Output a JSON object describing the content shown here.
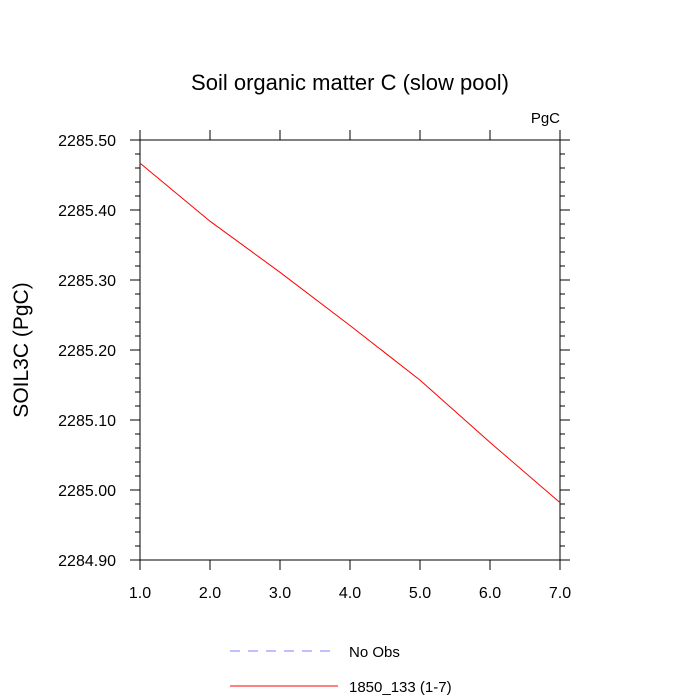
{
  "chart_data": {
    "type": "line",
    "title": "Soil organic matter C (slow pool)",
    "units_label": "PgC",
    "xlabel": "",
    "ylabel": "SOIL3C  (PgC)",
    "xlim": [
      1.0,
      7.0
    ],
    "ylim": [
      2284.9,
      2285.5
    ],
    "x_ticks": [
      "1.0",
      "2.0",
      "3.0",
      "4.0",
      "5.0",
      "6.0",
      "7.0"
    ],
    "y_ticks": [
      "2284.90",
      "2285.00",
      "2285.10",
      "2285.20",
      "2285.30",
      "2285.40",
      "2285.50"
    ],
    "grid": false,
    "legend_position": "bottom",
    "series": [
      {
        "name": "No Obs",
        "color": "#8080ff",
        "style": "dashed",
        "x": [],
        "values": []
      },
      {
        "name": "1850_133 (1-7)",
        "color": "#ff0000",
        "style": "solid",
        "x": [
          1,
          2,
          3,
          4,
          5,
          6,
          7
        ],
        "values": [
          2285.467,
          2285.384,
          2285.311,
          2285.235,
          2285.157,
          2285.068,
          2284.982
        ]
      }
    ]
  }
}
